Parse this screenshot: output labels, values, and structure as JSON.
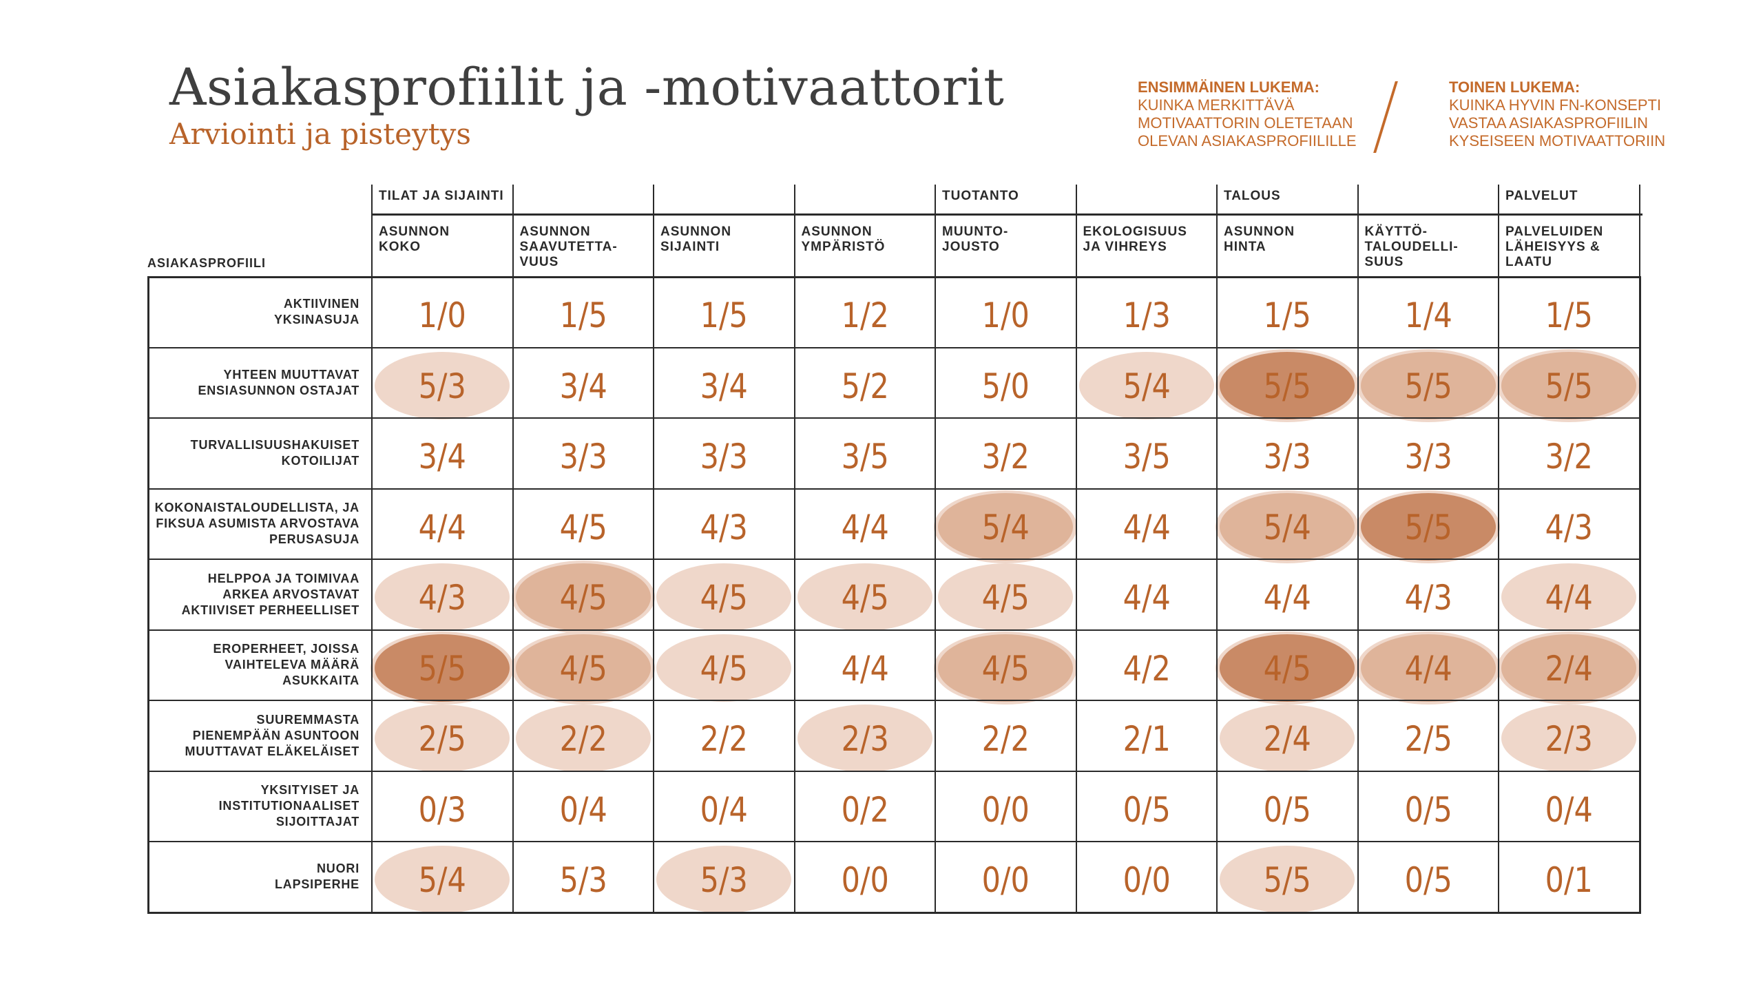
{
  "title": "Asiakasprofiilit ja -motivaattorit",
  "subtitle": "Arviointi ja pisteytys",
  "legend": {
    "first": {
      "head": "ENSIMMÄINEN LUKEMA:",
      "lines": [
        "KUINKA MERKITTÄVÄ",
        "MOTIVAATTORIN OLETETAAN",
        "OLEVAN ASIAKASPROFIILILLE"
      ]
    },
    "second": {
      "head": "TOINEN LUKEMA:",
      "lines": [
        "KUINKA HYVIN FN-KONSEPTI",
        "VASTAA ASIAKASPROFIILIN",
        "KYSEISEEN MOTIVAATTORIIN"
      ]
    }
  },
  "profile_heading": "ASIAKASPROFIILI",
  "groups": [
    {
      "label": "TILAT JA SIJAINTI",
      "span": 4
    },
    {
      "label": "TUOTANTO",
      "span": 2
    },
    {
      "label": "TALOUS",
      "span": 2
    },
    {
      "label": "PALVELUT",
      "span": 1
    }
  ],
  "columns": [
    [
      "ASUNNON",
      "KOKO"
    ],
    [
      "ASUNNON",
      "SAAVUTETTA-",
      "VUUS"
    ],
    [
      "ASUNNON",
      "SIJAINTI"
    ],
    [
      "ASUNNON",
      "YMPÄRISTÖ"
    ],
    [
      "MUUNTO-",
      "JOUSTO"
    ],
    [
      "EKOLOGISUUS",
      "JA VIHREYS"
    ],
    [
      "ASUNNON",
      "HINTA"
    ],
    [
      "KÄYTTÖ-",
      "TALOUDELLI-",
      "SUUS"
    ],
    [
      "PALVELUIDEN",
      "LÄHEISYYS &",
      "LAATU"
    ]
  ],
  "rows": [
    {
      "label": [
        "AKTIIVINEN",
        "YKSINASUJA"
      ],
      "values": [
        "1/0",
        "1/5",
        "1/5",
        "1/2",
        "1/0",
        "1/3",
        "1/5",
        "1/4",
        "1/5"
      ],
      "levels": [
        0,
        0,
        0,
        0,
        0,
        0,
        0,
        0,
        0
      ]
    },
    {
      "label": [
        "YHTEEN MUUTTAVAT",
        "ENSIASUNNON OSTAJAT"
      ],
      "values": [
        "5/3",
        "3/4",
        "3/4",
        "5/2",
        "5/0",
        "5/4",
        "5/5",
        "5/5",
        "5/5"
      ],
      "levels": [
        1,
        0,
        0,
        0,
        0,
        1,
        3,
        2,
        2
      ]
    },
    {
      "label": [
        "TURVALLISUUSHAKUISET",
        "KOTOILIJAT"
      ],
      "values": [
        "3/4",
        "3/3",
        "3/3",
        "3/5",
        "3/2",
        "3/5",
        "3/3",
        "3/3",
        "3/2"
      ],
      "levels": [
        0,
        0,
        0,
        0,
        0,
        0,
        0,
        0,
        0
      ]
    },
    {
      "label": [
        "KOKONAISTALOUDELLISTA, JA",
        "FIKSUA ASUMISTA ARVOSTAVA",
        "PERUSASUJA"
      ],
      "values": [
        "4/4",
        "4/5",
        "4/3",
        "4/4",
        "5/4",
        "4/4",
        "5/4",
        "5/5",
        "4/3"
      ],
      "levels": [
        0,
        0,
        0,
        0,
        2,
        0,
        2,
        3,
        0
      ]
    },
    {
      "label": [
        "HELPPOA JA TOIMIVAA",
        "ARKEA ARVOSTAVAT",
        "AKTIIVISET PERHEELLISET"
      ],
      "values": [
        "4/3",
        "4/5",
        "4/5",
        "4/5",
        "4/5",
        "4/4",
        "4/4",
        "4/3",
        "4/4"
      ],
      "levels": [
        1,
        2,
        1,
        1,
        1,
        0,
        0,
        0,
        1
      ]
    },
    {
      "label": [
        "EROPERHEET, JOISSA",
        "VAIHTELEVA MÄÄRÄ",
        "ASUKKAITA"
      ],
      "values": [
        "5/5",
        "4/5",
        "4/5",
        "4/4",
        "4/5",
        "4/2",
        "4/5",
        "4/4",
        "2/4"
      ],
      "levels": [
        3,
        2,
        1,
        0,
        2,
        0,
        3,
        2,
        2
      ]
    },
    {
      "label": [
        "SUUREMMASTA",
        "PIENEMPÄÄN ASUNTOON",
        "MUUTTAVAT ELÄKELÄISET"
      ],
      "values": [
        "2/5",
        "2/2",
        "2/2",
        "2/3",
        "2/2",
        "2/1",
        "2/4",
        "2/5",
        "2/3"
      ],
      "levels": [
        1,
        1,
        0,
        1,
        0,
        0,
        1,
        0,
        1
      ]
    },
    {
      "label": [
        "YKSITYISET JA",
        "INSTITUTIONAALISET",
        "SIJOITTAJAT"
      ],
      "values": [
        "0/3",
        "0/4",
        "0/4",
        "0/2",
        "0/0",
        "0/5",
        "0/5",
        "0/5",
        "0/4"
      ],
      "levels": [
        0,
        0,
        0,
        0,
        0,
        0,
        0,
        0,
        0
      ]
    },
    {
      "label": [
        "NUORI",
        "LAPSIPERHE"
      ],
      "values": [
        "5/4",
        "5/3",
        "5/3",
        "0/0",
        "0/0",
        "0/0",
        "5/5",
        "0/5",
        "0/1"
      ],
      "levels": [
        1,
        0,
        1,
        0,
        0,
        0,
        1,
        0,
        0
      ]
    }
  ],
  "colors": {
    "level1": "#efd7ca",
    "level2": "#dfb49a",
    "level3": "#c98a66",
    "text": "#b8632a",
    "legend": "#c46a2a"
  }
}
